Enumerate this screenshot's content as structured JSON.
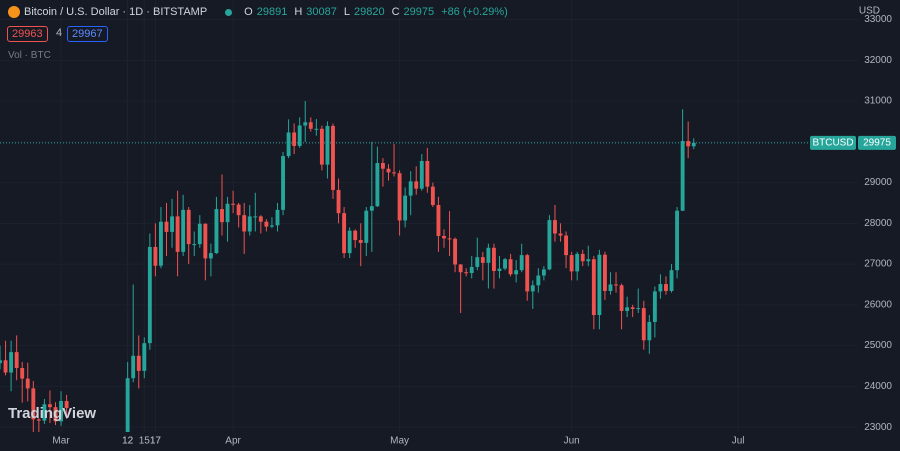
{
  "chart_data": {
    "type": "candlestick",
    "title": "Bitcoin / U.S. Dollar · 1D · BITSTAMP",
    "change": "+86 (+0.29%)",
    "bid": "29963",
    "spread": "4",
    "ask": "29967",
    "volume_label": "Vol · BTC",
    "currency": "USD",
    "symbol": "BTCUSD",
    "brand": "TradingView",
    "up_color": "#26a69a",
    "down_color": "#ef5350",
    "grid": true,
    "ylim": [
      22880,
      33480
    ],
    "yticks": [
      23000,
      24000,
      25000,
      26000,
      27000,
      28000,
      29000,
      30000,
      31000,
      32000,
      33000
    ],
    "xlim": [
      -11,
      143.6
    ],
    "xticks": [
      {
        "value": 0,
        "label": "Mar"
      },
      12,
      {
        "value": 31,
        "label": "Apr"
      },
      17,
      {
        "value": 61,
        "label": "May"
      },
      15,
      {
        "value": 92,
        "label": "Jun"
      },
      12,
      {
        "value": 122,
        "label": "Jul"
      },
      17
    ],
    "x": [
      -11,
      -10,
      -9,
      -8,
      -7,
      -6,
      -5,
      -4,
      -3,
      -2,
      -1,
      0,
      1,
      12,
      13,
      14,
      15,
      16,
      17,
      18,
      19,
      20,
      21,
      22,
      23,
      24,
      25,
      26,
      27,
      28,
      29,
      30,
      31,
      32,
      33,
      34,
      35,
      36,
      37,
      38,
      39,
      40,
      41,
      42,
      43,
      44,
      45,
      46,
      47,
      48,
      49,
      50,
      51,
      52,
      53,
      54,
      55,
      56,
      57,
      58,
      59,
      60,
      61,
      62,
      63,
      64,
      65,
      66,
      67,
      68,
      69,
      70,
      71,
      72,
      73,
      74,
      75,
      76,
      77,
      78,
      79,
      80,
      81,
      82,
      83,
      84,
      85,
      86,
      87,
      88,
      89,
      90,
      91,
      92,
      93,
      94,
      95,
      96,
      97,
      98,
      99,
      100,
      101,
      102,
      103,
      104,
      105,
      106,
      107,
      108,
      109,
      110,
      111,
      112,
      113,
      114
    ],
    "open": [
      24570,
      24640,
      24340,
      24840,
      24450,
      24190,
      23950,
      23190,
      23160,
      23560,
      23490,
      23140,
      23640,
      22140,
      24200,
      24750,
      24380,
      25060,
      27420,
      26960,
      28040,
      27790,
      28170,
      27300,
      28330,
      27490,
      27490,
      27990,
      27140,
      27270,
      28350,
      28030,
      28480,
      28460,
      28200,
      27800,
      28170,
      28170,
      28040,
      27920,
      27950,
      28330,
      29650,
      30230,
      29900,
      30400,
      30480,
      30320,
      30320,
      29440,
      30390,
      28820,
      28250,
      27270,
      27820,
      27590,
      27520,
      28310,
      28420,
      29480,
      29340,
      29250,
      29230,
      28070,
      28680,
      29030,
      28850,
      29530,
      28900,
      28450,
      27690,
      27630,
      27620,
      26990,
      26800,
      26780,
      26930,
      27170,
      27030,
      27400,
      26830,
      26890,
      27120,
      26750,
      26850,
      27220,
      26330,
      26480,
      26720,
      26870,
      28080,
      27750,
      27700,
      27220,
      26820,
      27250,
      27070,
      27120,
      25750,
      27230,
      26340,
      26500,
      26480,
      25850,
      25940,
      25900,
      25920,
      25130,
      25580,
      26330,
      26510,
      26340,
      26850,
      28310,
      30020,
      29891
    ],
    "high": [
      25000,
      25120,
      25120,
      25250,
      24600,
      24580,
      24130,
      23220,
      23690,
      23900,
      23610,
      23880,
      23790,
      24600,
      26500,
      25250,
      25200,
      27750,
      28000,
      28400,
      28500,
      28600,
      28800,
      28700,
      28400,
      27800,
      28200,
      28000,
      27500,
      28650,
      29200,
      28650,
      28800,
      28500,
      28500,
      28450,
      28750,
      28200,
      28100,
      28150,
      28500,
      29750,
      30550,
      30450,
      30600,
      31000,
      30600,
      30560,
      30400,
      30500,
      30450,
      29100,
      28400,
      27900,
      27850,
      28000,
      28400,
      30000,
      29880,
      29600,
      29450,
      29950,
      29300,
      28880,
      29280,
      29400,
      29700,
      29850,
      29000,
      28650,
      27850,
      28300,
      27650,
      27000,
      26900,
      27200,
      27650,
      27300,
      27500,
      27500,
      27200,
      27150,
      27250,
      27100,
      27500,
      27250,
      26600,
      26900,
      26950,
      28200,
      28450,
      28000,
      27800,
      27300,
      27300,
      27350,
      27450,
      27200,
      27350,
      27300,
      26800,
      26800,
      26520,
      26200,
      26000,
      26400,
      26100,
      25750,
      26450,
      26750,
      26700,
      27000,
      28400,
      30800,
      30500,
      30087
    ],
    "low": [
      24420,
      24270,
      23880,
      24150,
      23600,
      23630,
      22860,
      22750,
      23080,
      23100,
      23050,
      23030,
      23200,
      21900,
      24100,
      23950,
      24200,
      24900,
      26700,
      26900,
      27200,
      27400,
      26700,
      27200,
      27000,
      27200,
      27400,
      26600,
      26700,
      27250,
      27700,
      27550,
      28250,
      27900,
      27250,
      27700,
      27800,
      27750,
      27800,
      27880,
      27800,
      28200,
      29600,
      29700,
      29850,
      30000,
      30250,
      30150,
      29300,
      29100,
      28600,
      28000,
      27150,
      27150,
      27400,
      26950,
      27200,
      27300,
      28400,
      28900,
      29050,
      29150,
      27700,
      27900,
      28200,
      28700,
      28800,
      28750,
      28400,
      27300,
      27400,
      27200,
      26800,
      25800,
      26700,
      26650,
      26850,
      26600,
      26400,
      26400,
      26650,
      26850,
      26700,
      26550,
      26800,
      26100,
      25900,
      26300,
      26600,
      26850,
      27550,
      27550,
      26900,
      26600,
      26600,
      26950,
      26950,
      25400,
      25400,
      26120,
      26250,
      26300,
      25400,
      25700,
      25700,
      25800,
      24900,
      24800,
      25200,
      26150,
      26250,
      26300,
      26650,
      28300,
      29600,
      29820
    ],
    "close": [
      24640,
      24340,
      24840,
      24450,
      24190,
      23950,
      23190,
      23160,
      23560,
      23490,
      23140,
      23640,
      23470,
      24200,
      24750,
      24380,
      25060,
      27420,
      26960,
      28040,
      27790,
      28170,
      27300,
      28330,
      27490,
      27490,
      27990,
      27140,
      27270,
      28350,
      28030,
      28480,
      28460,
      28200,
      27800,
      28170,
      28170,
      28040,
      27920,
      27950,
      28330,
      29650,
      30230,
      29900,
      30400,
      30480,
      30320,
      30320,
      29440,
      30390,
      28820,
      28250,
      27270,
      27820,
      27590,
      27520,
      28310,
      28420,
      29480,
      29340,
      29250,
      29230,
      28070,
      28680,
      29030,
      28850,
      29530,
      28900,
      28450,
      27690,
      27630,
      27620,
      26990,
      26800,
      26780,
      26930,
      27170,
      27030,
      27400,
      26830,
      26890,
      27120,
      26750,
      26850,
      27220,
      26330,
      26480,
      26720,
      26870,
      28080,
      27750,
      27700,
      27220,
      26820,
      27250,
      27070,
      27120,
      25750,
      27230,
      26340,
      26500,
      26480,
      25850,
      25940,
      25900,
      25920,
      25130,
      25580,
      26330,
      26510,
      26340,
      26850,
      28310,
      30020,
      29890,
      29975
    ]
  }
}
